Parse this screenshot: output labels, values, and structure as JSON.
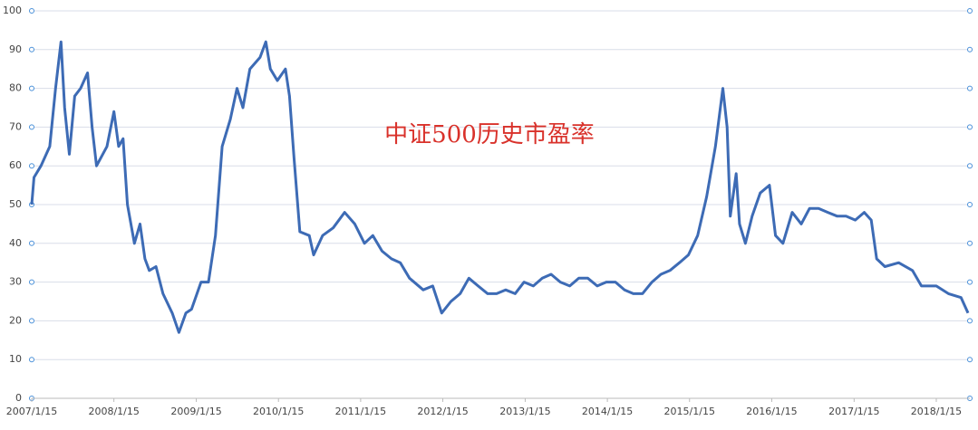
{
  "chart_data": {
    "type": "line",
    "annotation": "中证500历史市盈率",
    "x": [
      "2007/1/15",
      "2007/1/25",
      "2007/2/25",
      "2007/4/5",
      "2007/5/1",
      "2007/5/25",
      "2007/6/10",
      "2007/7/1",
      "2007/7/25",
      "2007/8/20",
      "2007/9/20",
      "2007/10/10",
      "2007/10/30",
      "2007/12/15",
      "2008/1/15",
      "2008/2/5",
      "2008/2/25",
      "2008/3/15",
      "2008/4/15",
      "2008/5/10",
      "2008/6/1",
      "2008/6/20",
      "2008/7/20",
      "2008/8/20",
      "2008/9/30",
      "2008/10/30",
      "2008/11/30",
      "2008/12/25",
      "2009/2/5",
      "2009/3/10",
      "2009/4/10",
      "2009/5/10",
      "2009/6/15",
      "2009/7/15",
      "2009/8/10",
      "2009/9/10",
      "2009/10/25",
      "2009/11/20",
      "2009/12/10",
      "2010/1/10",
      "2010/2/15",
      "2010/3/5",
      "2010/3/25",
      "2010/4/20",
      "2010/6/1",
      "2010/6/20",
      "2010/7/30",
      "2010/9/15",
      "2010/11/5",
      "2010/12/20",
      "2011/2/1",
      "2011/3/10",
      "2011/4/20",
      "2011/6/1",
      "2011/7/10",
      "2011/8/20",
      "2011/10/20",
      "2011/12/1",
      "2012/1/10",
      "2012/2/20",
      "2012/4/1",
      "2012/5/10",
      "2012/6/20",
      "2012/8/1",
      "2012/9/10",
      "2012/10/20",
      "2012/12/1",
      "2013/1/10",
      "2013/2/20",
      "2013/4/1",
      "2013/5/10",
      "2013/6/20",
      "2013/8/1",
      "2013/9/10",
      "2013/10/20",
      "2013/12/1",
      "2014/1/10",
      "2014/2/20",
      "2014/4/1",
      "2014/5/10",
      "2014/6/20",
      "2014/8/1",
      "2014/9/10",
      "2014/10/20",
      "2014/12/1",
      "2015/1/10",
      "2015/2/20",
      "2015/4/1",
      "2015/5/10",
      "2015/6/12",
      "2015/7/1",
      "2015/7/15",
      "2015/8/10",
      "2015/8/25",
      "2015/9/20",
      "2015/10/20",
      "2015/11/25",
      "2016/1/5",
      "2016/2/1",
      "2016/3/5",
      "2016/4/15",
      "2016/5/25",
      "2016/7/1",
      "2016/8/10",
      "2016/9/20",
      "2016/11/1",
      "2016/12/10",
      "2017/1/20",
      "2017/3/1",
      "2017/4/1",
      "2017/4/25",
      "2017/6/1",
      "2017/8/1",
      "2017/10/1",
      "2017/11/10",
      "2018/1/15",
      "2018/3/10",
      "2018/5/5",
      "2018/6/5"
    ],
    "series": [
      {
        "color": "#3d6bb5",
        "values": [
          50,
          57,
          60,
          65,
          80,
          92,
          75,
          63,
          78,
          80,
          84,
          70,
          60,
          65,
          74,
          65,
          67,
          50,
          40,
          45,
          36,
          33,
          34,
          27,
          22,
          17,
          22,
          23,
          30,
          30,
          42,
          65,
          72,
          80,
          75,
          85,
          88,
          92,
          85,
          82,
          85,
          78,
          62,
          43,
          42,
          37,
          42,
          44,
          48,
          45,
          40,
          42,
          38,
          36,
          35,
          31,
          28,
          29,
          22,
          25,
          27,
          31,
          29,
          27,
          27,
          28,
          27,
          30,
          29,
          31,
          32,
          30,
          29,
          31,
          31,
          29,
          30,
          30,
          28,
          27,
          27,
          30,
          32,
          33,
          35,
          37,
          42,
          52,
          65,
          80,
          70,
          47,
          58,
          45,
          40,
          47,
          53,
          55,
          42,
          40,
          48,
          45,
          49,
          49,
          48,
          47,
          47,
          46,
          48,
          46,
          36,
          34,
          35,
          33,
          29,
          29,
          27,
          26,
          22
        ]
      }
    ],
    "xlim": [
      "2007/1/15",
      "2018/6/5"
    ],
    "xticks": [
      "2007/1/15",
      "2008/1/15",
      "2009/1/15",
      "2010/1/15",
      "2011/1/15",
      "2012/1/15",
      "2013/1/15",
      "2014/1/15",
      "2015/1/15",
      "2016/1/15",
      "2017/1/15",
      "2018/1/15"
    ],
    "ylim": [
      0,
      100
    ],
    "yticks": [
      0,
      10,
      20,
      30,
      40,
      50,
      60,
      70,
      80,
      90,
      100
    ],
    "grid": true
  }
}
